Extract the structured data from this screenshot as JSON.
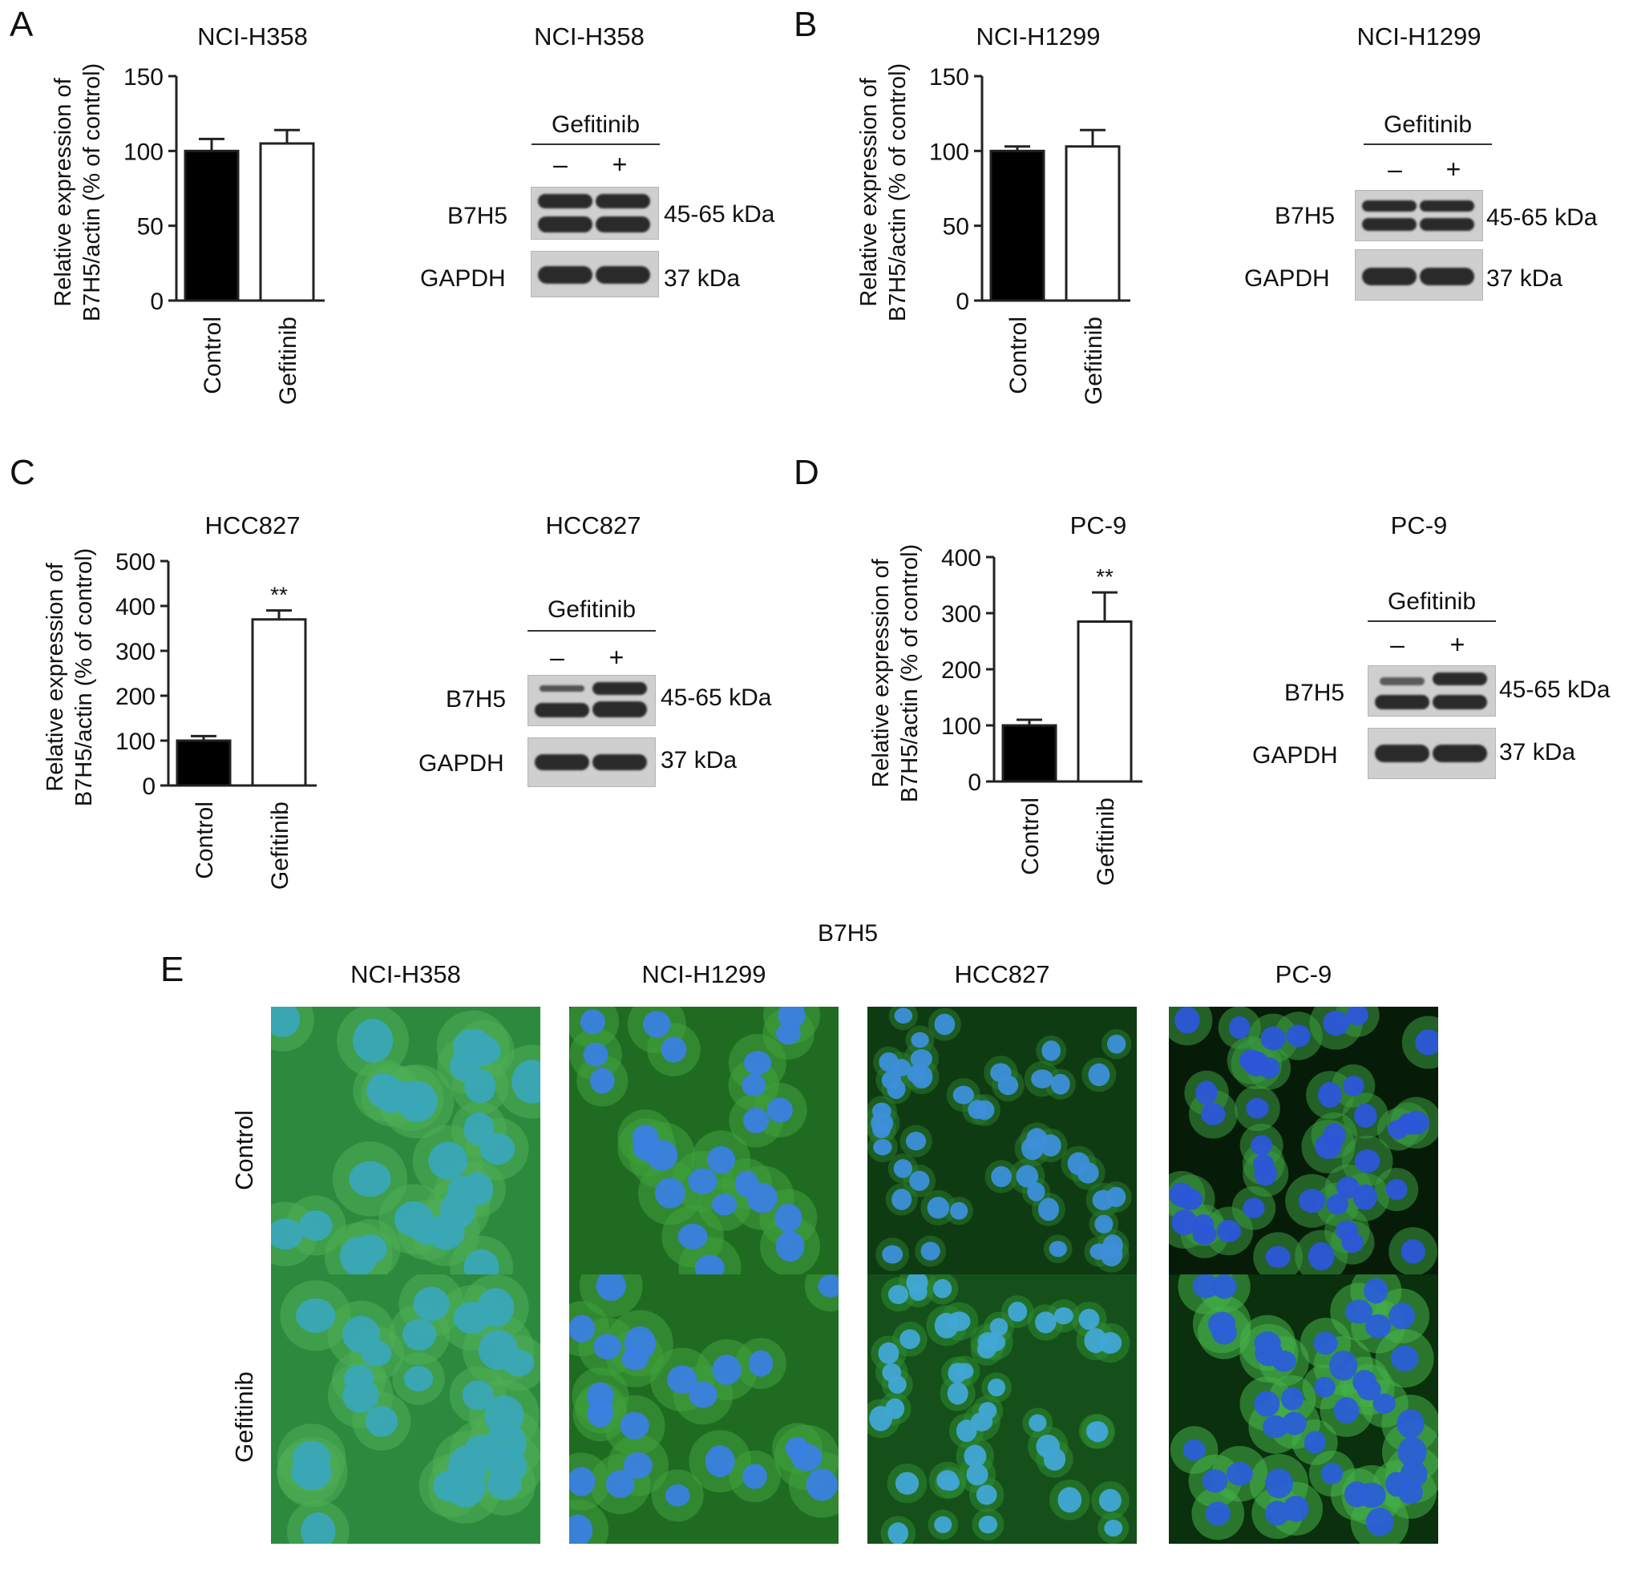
{
  "panels": {
    "A": {
      "letter": "A",
      "chart_title": "NCI-H358",
      "blot_title": "NCI-H358"
    },
    "B": {
      "letter": "B",
      "chart_title": "NCI-H1299",
      "blot_title": "NCI-H1299"
    },
    "C": {
      "letter": "C",
      "chart_title": "HCC827",
      "blot_title": "HCC827"
    },
    "D": {
      "letter": "D",
      "chart_title": "PC-9",
      "blot_title": "PC-9"
    },
    "E": {
      "letter": "E",
      "title": "B7H5",
      "columns": [
        "NCI-H358",
        "NCI-H1299",
        "HCC827",
        "PC-9"
      ],
      "rows": [
        "Control",
        "Gefitinib"
      ]
    }
  },
  "blot": {
    "treatment": "Gefitinib",
    "minus": "–",
    "plus": "+",
    "target": "B7H5",
    "target_size": "45-65 kDa",
    "loading": "GAPDH",
    "loading_size": "37 kDa"
  },
  "chart_data": [
    {
      "type": "bar",
      "categories": [
        "Control",
        "Gefitinib"
      ],
      "values": [
        100,
        105
      ],
      "errors": [
        8,
        9
      ],
      "ylim": [
        0,
        150
      ],
      "yticks": [
        0,
        50,
        100,
        150
      ],
      "ylabel": [
        "Relative expression of",
        "B7H5/actin (% of control)"
      ],
      "title": "NCI-H358",
      "significance": [
        "",
        ""
      ]
    },
    {
      "type": "bar",
      "categories": [
        "Control",
        "Gefitinib"
      ],
      "values": [
        100,
        103
      ],
      "errors": [
        3,
        11
      ],
      "ylim": [
        0,
        150
      ],
      "yticks": [
        0,
        50,
        100,
        150
      ],
      "ylabel": [
        "Relative expression of",
        "B7H5/actin (% of control)"
      ],
      "title": "NCI-H1299",
      "significance": [
        "",
        ""
      ]
    },
    {
      "type": "bar",
      "categories": [
        "Control",
        "Gefitinib"
      ],
      "values": [
        100,
        370
      ],
      "errors": [
        10,
        20
      ],
      "ylim": [
        0,
        500
      ],
      "yticks": [
        0,
        100,
        200,
        300,
        400,
        500
      ],
      "ylabel": [
        "Relative expression of",
        "B7H5/actin (% of control)"
      ],
      "title": "HCC827",
      "significance": [
        "",
        "**"
      ]
    },
    {
      "type": "bar",
      "categories": [
        "Control",
        "Gefitinib"
      ],
      "values": [
        100,
        285
      ],
      "errors": [
        10,
        52
      ],
      "ylim": [
        0,
        400
      ],
      "yticks": [
        0,
        100,
        200,
        300,
        400
      ],
      "ylabel": [
        "Relative expression of",
        "B7H5/actin (% of control)"
      ],
      "title": "PC-9",
      "significance": [
        "",
        "**"
      ]
    }
  ],
  "colors": {
    "control_bar": "#000000",
    "gefitinib_bar": "#ffffff",
    "fluor_green": "#2e9a35",
    "fluor_blue": "#2a6fd8"
  }
}
